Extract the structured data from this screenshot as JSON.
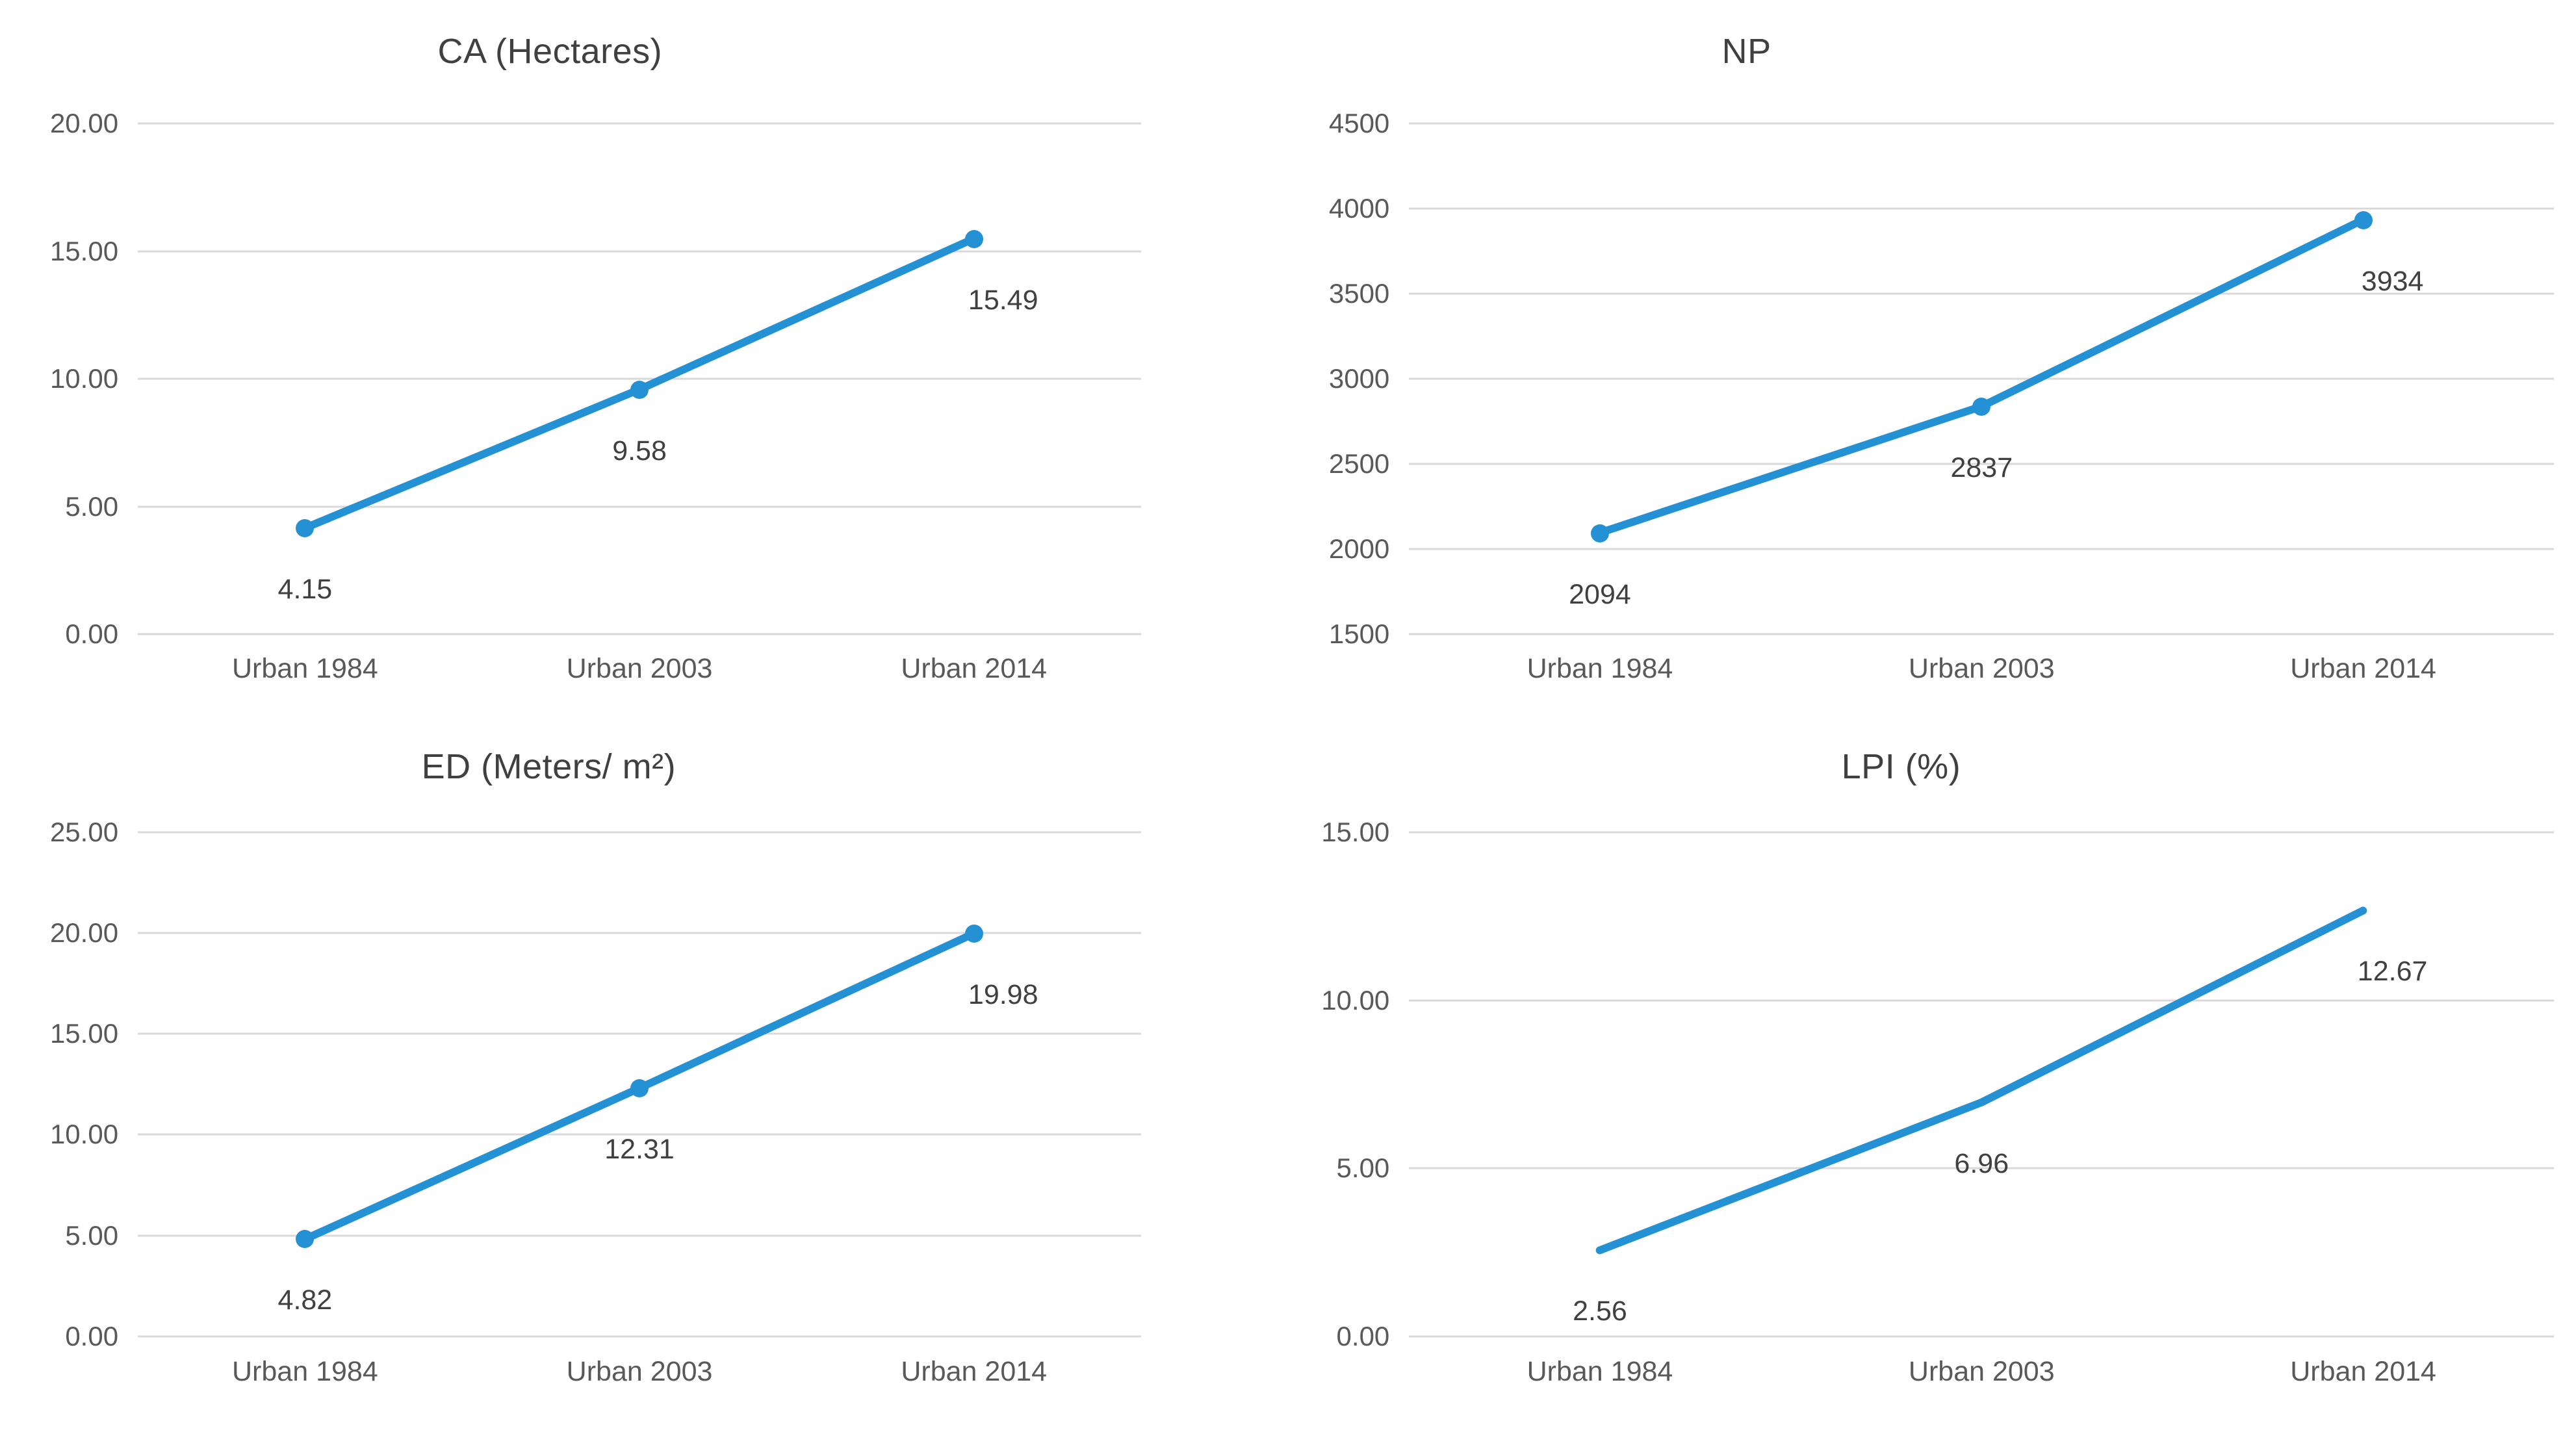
{
  "page": {
    "background": "#ffffff"
  },
  "colors": {
    "line": "#2491d5",
    "grid": "#d9d9d9",
    "tick_text": "#595959",
    "data_label_text": "#404040",
    "title_text": "#404040"
  },
  "chart_data": [
    {
      "id": "ca",
      "type": "line",
      "title": "CA (Hectares)",
      "categories": [
        "Urban 1984",
        "Urban 2003",
        "Urban 2014"
      ],
      "values": [
        4.15,
        9.58,
        15.49
      ],
      "data_labels": [
        "4.15",
        "9.58",
        "15.49"
      ],
      "ylim": [
        0,
        20
      ],
      "y_ticks": [
        {
          "value": 20,
          "label": "20.00"
        },
        {
          "value": 15,
          "label": "15.00"
        },
        {
          "value": 10,
          "label": "10.00"
        },
        {
          "value": 5,
          "label": "5.00"
        },
        {
          "value": 0,
          "label": "0.00"
        }
      ],
      "markers": true,
      "grid": true,
      "legend": "none",
      "line_color": "#2491d5"
    },
    {
      "id": "np",
      "type": "line",
      "title": "NP",
      "categories": [
        "Urban 1984",
        "Urban 2003",
        "Urban 2014"
      ],
      "values": [
        2094,
        2837,
        3934
      ],
      "data_labels": [
        "2094",
        "2837",
        "3934"
      ],
      "ylim": [
        1500,
        4500
      ],
      "y_ticks": [
        {
          "value": 4500,
          "label": "4500"
        },
        {
          "value": 4000,
          "label": "4000"
        },
        {
          "value": 3500,
          "label": "3500"
        },
        {
          "value": 3000,
          "label": "3000"
        },
        {
          "value": 2500,
          "label": "2500"
        },
        {
          "value": 2000,
          "label": "2000"
        },
        {
          "value": 1500,
          "label": "1500"
        }
      ],
      "markers": true,
      "grid": true,
      "legend": "none",
      "line_color": "#2491d5"
    },
    {
      "id": "ed",
      "type": "line",
      "title": "ED (Meters/ m²)",
      "categories": [
        "Urban 1984",
        "Urban 2003",
        "Urban 2014"
      ],
      "values": [
        4.82,
        12.31,
        19.98
      ],
      "data_labels": [
        "4.82",
        "12.31",
        "19.98"
      ],
      "ylim": [
        0,
        25
      ],
      "y_ticks": [
        {
          "value": 25,
          "label": "25.00"
        },
        {
          "value": 20,
          "label": "20.00"
        },
        {
          "value": 15,
          "label": "15.00"
        },
        {
          "value": 10,
          "label": "10.00"
        },
        {
          "value": 5,
          "label": "5.00"
        },
        {
          "value": 0,
          "label": "0.00"
        }
      ],
      "markers": true,
      "grid": true,
      "legend": "none",
      "line_color": "#2491d5"
    },
    {
      "id": "lpi",
      "type": "line",
      "title": "LPI (%)",
      "categories": [
        "Urban 1984",
        "Urban 2003",
        "Urban 2014"
      ],
      "values": [
        2.56,
        6.96,
        12.67
      ],
      "data_labels": [
        "2.56",
        "6.96",
        "12.67"
      ],
      "ylim": [
        0,
        15
      ],
      "y_ticks": [
        {
          "value": 15,
          "label": "15.00"
        },
        {
          "value": 10,
          "label": "10.00"
        },
        {
          "value": 5,
          "label": "5.00"
        },
        {
          "value": 0,
          "label": "0.00"
        }
      ],
      "markers": false,
      "grid": true,
      "legend": "none",
      "line_color": "#2491d5"
    }
  ]
}
